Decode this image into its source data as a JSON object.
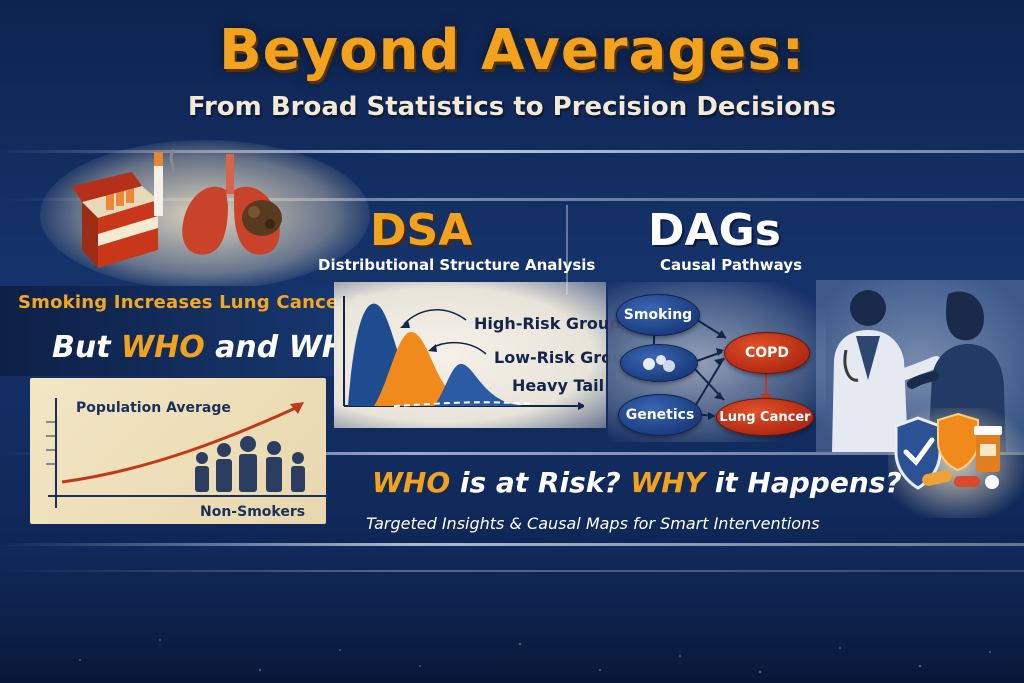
{
  "header": {
    "title": "Beyond Averages:",
    "subtitle": "From Broad Statistics to Precision Decisions"
  },
  "left": {
    "headline": "Smoking Increases Lung Cancer Risk",
    "question_prefix": "But ",
    "question_who": "WHO",
    "question_and": " and ",
    "question_why": "WHY?",
    "population_label": "Population Average",
    "non_smokers_label": "Non-Smokers",
    "icons": [
      "cigarette-pack-icon",
      "lungs-icon"
    ]
  },
  "dsa": {
    "title": "DSA",
    "subtitle": "Distributional Structure Analysis",
    "labels": {
      "high_risk": "High-Risk Group",
      "low_risk": "Low-Risk Group",
      "heavy_tail": "Heavy Tail"
    },
    "colors": {
      "blue": "#1e4c8e",
      "orange": "#f08a1c"
    }
  },
  "dags": {
    "title": "DAGs",
    "subtitle": "Causal Pathways",
    "nodes": {
      "smoking": "Smoking",
      "copd": "COPD",
      "genetics": "Genetics",
      "lung_cancer": "Lung Cancer"
    },
    "icons": [
      "doctor-patient-icon",
      "shield-check-icon",
      "pills-icon"
    ]
  },
  "bottom": {
    "who": "WHO",
    "who_rest": " is at Risk? ",
    "why": "WHY",
    "why_rest": " it Happens?",
    "tagline": "Targeted Insights & Causal Maps for Smart Interventions"
  },
  "colors": {
    "accent": "#f3a21d",
    "background": "#15336b",
    "red": "#c0391b"
  }
}
